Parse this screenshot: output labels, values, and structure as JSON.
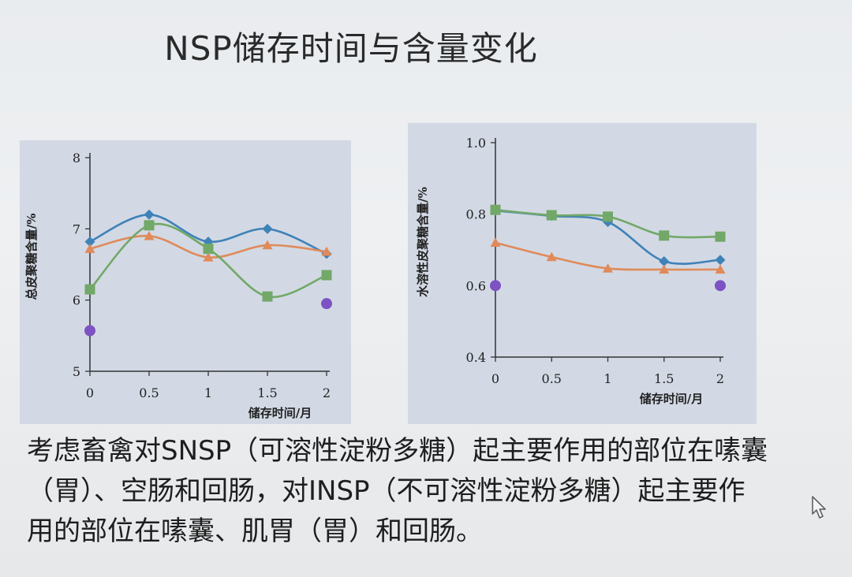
{
  "slide": {
    "title": "NSP储存时间与含量变化",
    "body": "考虑畜禽对SNSP（可溶性淀粉多糖）起主要作用的部位在嗉囊（胃）、空肠和回肠，对INSP（不可溶性淀粉多糖）起主要作用的部位在嗉囊、肌胃（胃）和回肠。"
  },
  "chart_data": [
    {
      "type": "line",
      "title": "",
      "xlabel": "储存时间/月",
      "ylabel": "总皮聚糖含量/%",
      "x": [
        0,
        0.5,
        1,
        1.5,
        2
      ],
      "x_tick_labels": [
        "0",
        "0.5",
        "1",
        "1.5",
        "2"
      ],
      "y_ticks": [
        5,
        6,
        7,
        8
      ],
      "y_tick_labels": [
        "5",
        "6",
        "7",
        "8"
      ],
      "xlim": [
        0,
        2
      ],
      "ylim": [
        5,
        8
      ],
      "grid": false,
      "series": [
        {
          "marker": "diamond",
          "color": "#3f82b8",
          "values": [
            6.82,
            7.2,
            6.82,
            7.0,
            6.65
          ]
        },
        {
          "marker": "triangle",
          "color": "#e08a5a",
          "values": [
            6.72,
            6.9,
            6.6,
            6.77,
            6.68
          ]
        },
        {
          "marker": "square",
          "color": "#72a868",
          "values": [
            6.15,
            7.05,
            6.72,
            6.05,
            6.35
          ]
        },
        {
          "marker": "circle",
          "color": "#7d52c2",
          "line": false,
          "points": [
            [
              0,
              5.57
            ],
            [
              2,
              5.95
            ]
          ]
        }
      ]
    },
    {
      "type": "line",
      "title": "",
      "xlabel": "储存时间/月",
      "ylabel": "水溶性皮聚糖含量/%",
      "x": [
        0,
        0.5,
        1,
        1.5,
        2
      ],
      "x_tick_labels": [
        "0",
        "0.5",
        "1",
        "1.5",
        "2"
      ],
      "y_ticks": [
        0.4,
        0.6,
        0.8,
        1.0
      ],
      "y_tick_labels": [
        "0.4",
        "0.6",
        "0.8",
        "1.0"
      ],
      "xlim": [
        0,
        2
      ],
      "ylim": [
        0.4,
        1.0
      ],
      "grid": false,
      "series": [
        {
          "marker": "diamond",
          "color": "#3f82b8",
          "values": [
            0.81,
            0.795,
            0.778,
            0.668,
            0.672
          ]
        },
        {
          "marker": "square",
          "color": "#72a868",
          "values": [
            0.812,
            0.797,
            0.793,
            0.74,
            0.737
          ]
        },
        {
          "marker": "triangle",
          "color": "#e08a5a",
          "values": [
            0.72,
            0.68,
            0.648,
            0.645,
            0.645
          ]
        },
        {
          "marker": "circle",
          "color": "#7d52c2",
          "line": false,
          "points": [
            [
              0,
              0.6
            ],
            [
              2,
              0.6
            ]
          ]
        }
      ]
    }
  ]
}
